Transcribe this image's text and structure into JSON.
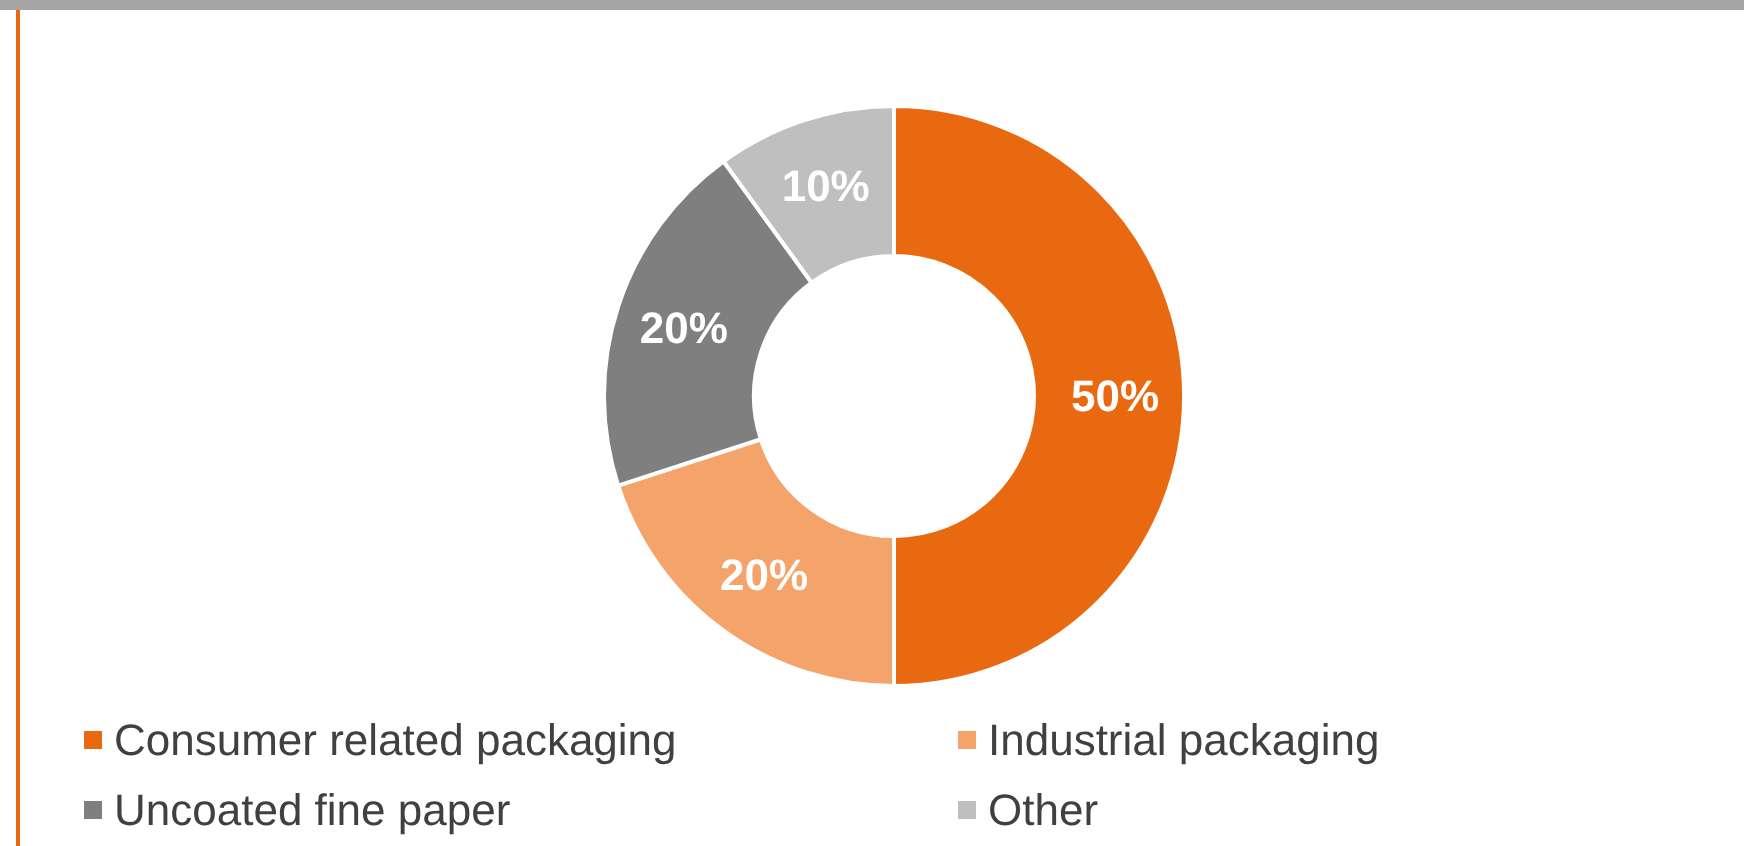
{
  "chart_data": {
    "type": "donut",
    "categories": [
      "Consumer related packaging",
      "Industrial packaging",
      "Uncoated fine paper",
      "Other"
    ],
    "values": [
      50,
      20,
      20,
      10
    ],
    "colors": [
      "#e8690f",
      "#f4a46a",
      "#7f7f7f",
      "#bfbfbf"
    ],
    "value_labels": [
      "50%",
      "20%",
      "20%",
      "10%"
    ],
    "legend": "bottom"
  }
}
